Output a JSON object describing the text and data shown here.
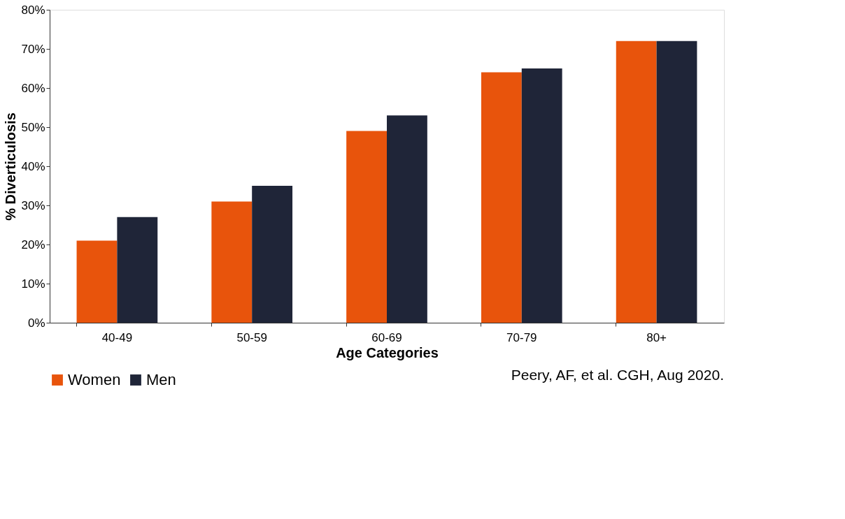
{
  "chart_data": {
    "type": "bar",
    "categories": [
      "40-49",
      "50-59",
      "60-69",
      "70-79",
      "80+"
    ],
    "series": [
      {
        "name": "Women",
        "color": "#e8540c",
        "values": [
          21,
          31,
          49,
          64,
          72
        ]
      },
      {
        "name": "Men",
        "color": "#1f2538",
        "values": [
          27,
          35,
          53,
          65,
          72
        ]
      }
    ],
    "xlabel": "Age Categories",
    "ylabel": "% Diverticulosis",
    "ylim": [
      0,
      80
    ],
    "yticks": [
      {
        "value": 0,
        "label": "0%"
      },
      {
        "value": 10,
        "label": "10%"
      },
      {
        "value": 20,
        "label": "20%"
      },
      {
        "value": 30,
        "label": "30%"
      },
      {
        "value": 40,
        "label": "40%"
      },
      {
        "value": 50,
        "label": "50%"
      },
      {
        "value": 60,
        "label": "60%"
      },
      {
        "value": 70,
        "label": "70%"
      },
      {
        "value": 80,
        "label": "80%"
      }
    ],
    "grid": false,
    "legend": "bottom",
    "annotations": [
      "Peery, AF, et al. CGH, Aug 2020."
    ]
  }
}
